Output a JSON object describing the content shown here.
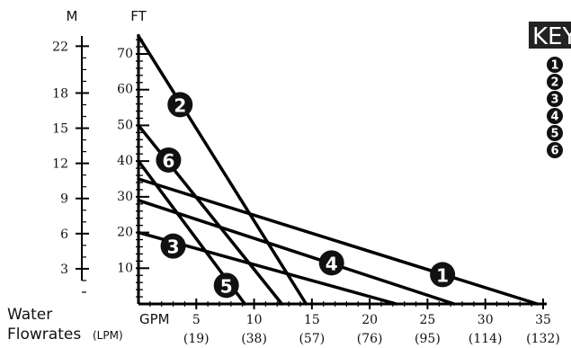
{
  "chart_data": {
    "type": "line",
    "left_axis_unit": "M",
    "right_axis_unit": "FT",
    "meter_ticks": [
      {
        "label": "22",
        "m": 22
      },
      {
        "label": "18",
        "m": 18
      },
      {
        "label": "15",
        "m": 15
      },
      {
        "label": "12",
        "m": 12
      },
      {
        "label": "9",
        "m": 9
      },
      {
        "label": "6",
        "m": 6
      },
      {
        "label": "3",
        "m": 3
      }
    ],
    "ft_ticks": [
      {
        "label": "10",
        "ft": 10
      },
      {
        "label": "20",
        "ft": 20
      },
      {
        "label": "30",
        "ft": 30
      },
      {
        "label": "40",
        "ft": 40
      },
      {
        "label": "50",
        "ft": 50
      },
      {
        "label": "60",
        "ft": 60
      },
      {
        "label": "70",
        "ft": 70
      }
    ],
    "x_unit_label": "GPM",
    "x_ticks": [
      {
        "gpm": 5,
        "label": "5",
        "lpm": "(19)"
      },
      {
        "gpm": 10,
        "label": "10",
        "lpm": "(38)"
      },
      {
        "gpm": 15,
        "label": "15",
        "lpm": "(57)"
      },
      {
        "gpm": 20,
        "label": "20",
        "lpm": "(76)"
      },
      {
        "gpm": 25,
        "label": "25",
        "lpm": "(95)"
      },
      {
        "gpm": 30,
        "label": "30",
        "lpm": "(114)"
      },
      {
        "gpm": 35,
        "label": "35",
        "lpm": "(132)"
      }
    ],
    "footer": {
      "line1": "Water",
      "line2": "Flowrates",
      "line2_small": "(LPM)"
    },
    "key_title": "KEY",
    "key_items": [
      "1",
      "2",
      "3",
      "4",
      "5",
      "6"
    ],
    "series": [
      {
        "name": "1",
        "points": [
          [
            0,
            35
          ],
          [
            34.5,
            0
          ]
        ],
        "label_at": [
          26.3,
          8.2
        ]
      },
      {
        "name": "2",
        "points": [
          [
            0,
            75
          ],
          [
            14.5,
            0
          ]
        ],
        "label_at": [
          3.6,
          55.8
        ]
      },
      {
        "name": "3",
        "points": [
          [
            0,
            20
          ],
          [
            22.3,
            0
          ]
        ],
        "label_at": [
          3.0,
          16.2
        ]
      },
      {
        "name": "4",
        "points": [
          [
            0,
            29
          ],
          [
            27.3,
            0
          ]
        ],
        "label_at": [
          16.7,
          11.5
        ]
      },
      {
        "name": "5",
        "points": [
          [
            0,
            40
          ],
          [
            9.2,
            0
          ]
        ],
        "label_at": [
          7.6,
          5.2
        ]
      },
      {
        "name": "6",
        "points": [
          [
            0,
            50
          ],
          [
            12.4,
            0
          ]
        ],
        "label_at": [
          2.6,
          40.3
        ]
      }
    ]
  }
}
